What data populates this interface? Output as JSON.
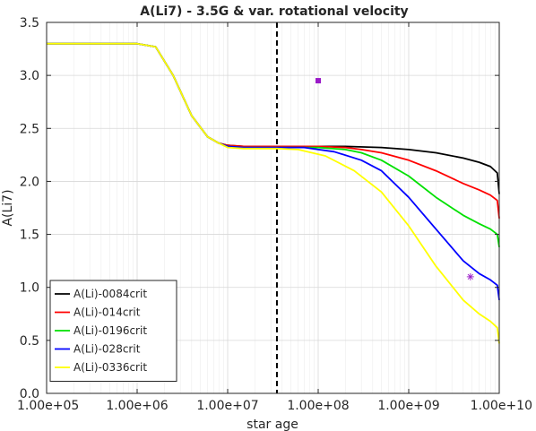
{
  "chart_data": {
    "type": "line",
    "title": "A(Li7) - 3.5G & var. rotational velocity",
    "xlabel": "star age",
    "ylabel": "A(Li7)",
    "xscale": "log",
    "xlim": [
      100000,
      10000000000
    ],
    "ylim": [
      0,
      3.5
    ],
    "x_ticks": [
      {
        "value": 100000,
        "label": "1.00e+05"
      },
      {
        "value": 1000000,
        "label": "1.00e+06"
      },
      {
        "value": 10000000,
        "label": "1.00e+07"
      },
      {
        "value": 100000000,
        "label": "1.00e+08"
      },
      {
        "value": 1000000000,
        "label": "1.00e+09"
      },
      {
        "value": 10000000000,
        "label": "1.00e+10"
      }
    ],
    "y_ticks": [
      {
        "value": 0,
        "label": "0.0"
      },
      {
        "value": 0.5,
        "label": "0.5"
      },
      {
        "value": 1.0,
        "label": "1.0"
      },
      {
        "value": 1.5,
        "label": "1.5"
      },
      {
        "value": 2.0,
        "label": "2.0"
      },
      {
        "value": 2.5,
        "label": "2.5"
      },
      {
        "value": 3.0,
        "label": "3.0"
      },
      {
        "value": 3.5,
        "label": "3.5"
      }
    ],
    "grid": true,
    "legend_position": "bottom-left",
    "vline": {
      "x": 35000000,
      "style": "dashed",
      "color": "#000000"
    },
    "series": [
      {
        "name": "A(Li)-0084crit",
        "color": "#000000",
        "x": [
          100000,
          1000000,
          1600000,
          2500000,
          4000000,
          6000000,
          8000000,
          10000000,
          15000000,
          20000000,
          35000000,
          100000000,
          200000000,
          500000000,
          1000000000,
          2000000000,
          4000000000,
          6000000000,
          8000000000,
          9500000000,
          10000000000
        ],
        "y": [
          3.3,
          3.3,
          3.27,
          3.0,
          2.62,
          2.42,
          2.36,
          2.34,
          2.33,
          2.33,
          2.33,
          2.33,
          2.33,
          2.32,
          2.3,
          2.27,
          2.22,
          2.18,
          2.14,
          2.08,
          1.88
        ]
      },
      {
        "name": "A(Li)-014crit",
        "color": "#ff0000",
        "x": [
          100000,
          1000000,
          1600000,
          2500000,
          4000000,
          6000000,
          8000000,
          10000000,
          15000000,
          20000000,
          35000000,
          100000000,
          200000000,
          300000000,
          500000000,
          1000000000,
          2000000000,
          4000000000,
          6000000000,
          8000000000,
          9500000000,
          10000000000
        ],
        "y": [
          3.3,
          3.3,
          3.27,
          3.0,
          2.62,
          2.42,
          2.36,
          2.34,
          2.33,
          2.33,
          2.33,
          2.33,
          2.32,
          2.3,
          2.27,
          2.2,
          2.1,
          1.98,
          1.92,
          1.87,
          1.82,
          1.65
        ]
      },
      {
        "name": "A(Li)-0196crit",
        "color": "#00e000",
        "x": [
          100000,
          1000000,
          1600000,
          2500000,
          4000000,
          6000000,
          8000000,
          10000000,
          15000000,
          20000000,
          35000000,
          100000000,
          200000000,
          300000000,
          500000000,
          1000000000,
          2000000000,
          4000000000,
          6000000000,
          8000000000,
          9500000000,
          10000000000
        ],
        "y": [
          3.3,
          3.3,
          3.27,
          3.0,
          2.62,
          2.42,
          2.36,
          2.33,
          2.32,
          2.32,
          2.32,
          2.32,
          2.3,
          2.27,
          2.2,
          2.05,
          1.85,
          1.68,
          1.6,
          1.55,
          1.5,
          1.38
        ]
      },
      {
        "name": "A(Li)-028crit",
        "color": "#0000ff",
        "x": [
          100000,
          1000000,
          1600000,
          2500000,
          4000000,
          6000000,
          8000000,
          10000000,
          15000000,
          20000000,
          35000000,
          70000000,
          150000000,
          300000000,
          500000000,
          1000000000,
          2000000000,
          4000000000,
          6000000000,
          8000000000,
          9500000000,
          10000000000
        ],
        "y": [
          3.3,
          3.3,
          3.27,
          3.0,
          2.62,
          2.42,
          2.36,
          2.33,
          2.32,
          2.32,
          2.32,
          2.32,
          2.28,
          2.2,
          2.1,
          1.85,
          1.55,
          1.25,
          1.13,
          1.07,
          1.02,
          0.88
        ]
      },
      {
        "name": "A(Li)-0336crit",
        "color": "#ffff00",
        "x": [
          100000,
          1000000,
          1600000,
          2500000,
          4000000,
          6000000,
          8000000,
          10000000,
          15000000,
          20000000,
          35000000,
          60000000,
          120000000,
          250000000,
          500000000,
          1000000000,
          2000000000,
          4000000000,
          6000000000,
          8000000000,
          9500000000,
          10000000000
        ],
        "y": [
          3.3,
          3.3,
          3.27,
          3.0,
          2.62,
          2.42,
          2.36,
          2.32,
          2.31,
          2.31,
          2.31,
          2.3,
          2.24,
          2.1,
          1.9,
          1.58,
          1.2,
          0.88,
          0.75,
          0.68,
          0.62,
          0.47
        ]
      }
    ],
    "markers": [
      {
        "x": 100000000,
        "y": 2.95,
        "shape": "square",
        "color": "#9a1ac8"
      },
      {
        "x": 4800000000,
        "y": 1.1,
        "shape": "asterisk",
        "color": "#9a1ac8"
      }
    ]
  }
}
